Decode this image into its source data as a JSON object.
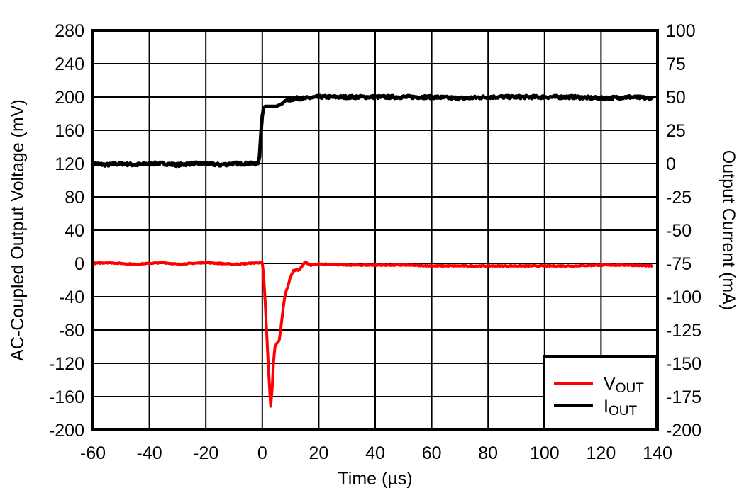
{
  "chart_data": {
    "type": "line",
    "title": "",
    "xlabel": "Time (µs)",
    "ylabel": "AC-Coupled Output Voltage (mV)",
    "y2label": "Output Current (mA)",
    "xlim": [
      -60,
      140
    ],
    "ylim": [
      -200,
      280
    ],
    "y2lim": [
      -200,
      100
    ],
    "grid": true,
    "legend_position": "lower right (inside plot)",
    "x_ticks": [
      -60,
      -40,
      -20,
      0,
      20,
      40,
      60,
      80,
      100,
      120,
      140
    ],
    "y_ticks": [
      280,
      240,
      200,
      160,
      120,
      80,
      40,
      0,
      -40,
      -80,
      -120,
      -160,
      -200
    ],
    "y2_ticks": [
      100,
      75,
      50,
      25,
      0,
      -25,
      -50,
      -75,
      -100,
      -125,
      -150,
      -175,
      -200
    ],
    "series": [
      {
        "name": "VOUT",
        "label_main": "V",
        "label_sub": "OUT",
        "axis": "left",
        "color": "#ff0000",
        "x": [
          -60,
          -55,
          -50,
          -45,
          -40,
          -35,
          -30,
          -25,
          -20,
          -15,
          -10,
          -5,
          -1,
          0,
          0.5,
          1,
          1.5,
          2,
          2.5,
          3,
          3.5,
          4,
          4.5,
          5,
          5.5,
          6,
          6.5,
          7,
          7.5,
          8,
          8.5,
          9,
          9.5,
          10,
          11,
          12,
          13,
          14,
          15,
          15.5,
          16,
          17,
          18,
          20,
          25,
          30,
          40,
          50,
          60,
          70,
          80,
          90,
          100,
          110,
          120,
          130,
          138
        ],
        "y": [
          0,
          1,
          0,
          -1,
          0,
          1,
          -1,
          0,
          1,
          0,
          -1,
          0,
          1,
          0,
          -15,
          -45,
          -80,
          -115,
          -145,
          -172,
          -150,
          -118,
          -100,
          -97,
          -95,
          -92,
          -80,
          -65,
          -50,
          -40,
          -33,
          -28,
          -22,
          -16,
          -9,
          -8,
          -8,
          -4,
          1,
          2,
          0,
          -2,
          -2,
          -1,
          -1,
          -2,
          -2,
          -2,
          -3,
          -3,
          -3,
          -3,
          -3,
          -3,
          -2,
          -2,
          -3
        ]
      },
      {
        "name": "IOUT",
        "label_main": "I",
        "label_sub": "OUT",
        "axis": "right",
        "color": "#000000",
        "x": [
          -60,
          -55,
          -50,
          -45,
          -40,
          -35,
          -30,
          -25,
          -20,
          -15,
          -10,
          -5,
          -1.5,
          -1,
          -0.5,
          0,
          0.5,
          1,
          2,
          3,
          4,
          5,
          6,
          7,
          8,
          9,
          10,
          12,
          15,
          20,
          30,
          40,
          50,
          60,
          70,
          80,
          90,
          100,
          110,
          120,
          130,
          138
        ],
        "y": [
          0,
          -1,
          0,
          -1,
          0,
          0,
          -1,
          0,
          0,
          -1,
          0,
          0,
          0,
          5,
          22,
          36,
          42,
          43,
          43,
          43,
          43,
          43,
          44,
          45,
          47,
          48,
          48,
          49,
          49,
          50,
          50,
          50,
          50,
          50,
          49,
          50,
          50,
          50,
          50,
          49,
          50,
          49
        ]
      }
    ]
  },
  "axes": {
    "x_title": "Time (µs)",
    "y_left_title": "AC-Coupled Output Voltage (mV)",
    "y_right_title": "Output Current (mA)"
  },
  "legend": {
    "items": [
      {
        "main": "V",
        "sub": "OUT",
        "color": "#ff0000"
      },
      {
        "main": "I",
        "sub": "OUT",
        "color": "#000000"
      }
    ]
  },
  "colors": {
    "background": "#ffffff",
    "frame": "#000000",
    "grid": "#000000",
    "vout": "#ff0000",
    "iout": "#000000"
  }
}
